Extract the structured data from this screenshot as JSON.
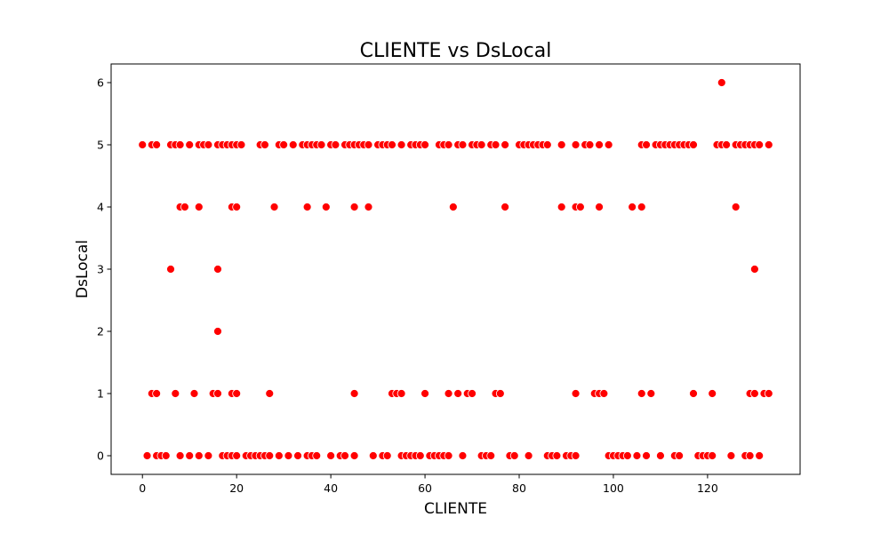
{
  "chart_data": {
    "type": "scatter",
    "title": "CLIENTE vs DsLocal",
    "xlabel": "CLIENTE",
    "ylabel": "DsLocal",
    "xlim": [
      -6.65,
      139.65
    ],
    "ylim": [
      -0.3,
      6.3
    ],
    "xticks": [
      0,
      20,
      40,
      60,
      80,
      100,
      120
    ],
    "yticks": [
      0,
      1,
      2,
      3,
      4,
      5,
      6
    ],
    "grid": false,
    "marker_color": "#ff0000",
    "marker_edge_color": "#ffffff",
    "points": [
      [
        0,
        5
      ],
      [
        2,
        5
      ],
      [
        3,
        5
      ],
      [
        6,
        5
      ],
      [
        7,
        5
      ],
      [
        8,
        5
      ],
      [
        10,
        5
      ],
      [
        12,
        5
      ],
      [
        13,
        5
      ],
      [
        14,
        5
      ],
      [
        16,
        5
      ],
      [
        17,
        5
      ],
      [
        18,
        5
      ],
      [
        19,
        5
      ],
      [
        20,
        5
      ],
      [
        21,
        5
      ],
      [
        25,
        5
      ],
      [
        26,
        5
      ],
      [
        29,
        5
      ],
      [
        30,
        5
      ],
      [
        32,
        5
      ],
      [
        34,
        5
      ],
      [
        35,
        5
      ],
      [
        36,
        5
      ],
      [
        37,
        5
      ],
      [
        38,
        5
      ],
      [
        40,
        5
      ],
      [
        41,
        5
      ],
      [
        43,
        5
      ],
      [
        44,
        5
      ],
      [
        45,
        5
      ],
      [
        46,
        5
      ],
      [
        47,
        5
      ],
      [
        48,
        5
      ],
      [
        50,
        5
      ],
      [
        51,
        5
      ],
      [
        52,
        5
      ],
      [
        53,
        5
      ],
      [
        55,
        5
      ],
      [
        57,
        5
      ],
      [
        58,
        5
      ],
      [
        59,
        5
      ],
      [
        60,
        5
      ],
      [
        63,
        5
      ],
      [
        64,
        5
      ],
      [
        65,
        5
      ],
      [
        67,
        5
      ],
      [
        68,
        5
      ],
      [
        70,
        5
      ],
      [
        71,
        5
      ],
      [
        72,
        5
      ],
      [
        74,
        5
      ],
      [
        75,
        5
      ],
      [
        77,
        5
      ],
      [
        80,
        5
      ],
      [
        81,
        5
      ],
      [
        82,
        5
      ],
      [
        83,
        5
      ],
      [
        84,
        5
      ],
      [
        85,
        5
      ],
      [
        86,
        5
      ],
      [
        89,
        5
      ],
      [
        92,
        5
      ],
      [
        94,
        5
      ],
      [
        95,
        5
      ],
      [
        97,
        5
      ],
      [
        99,
        5
      ],
      [
        106,
        5
      ],
      [
        107,
        5
      ],
      [
        109,
        5
      ],
      [
        110,
        5
      ],
      [
        111,
        5
      ],
      [
        112,
        5
      ],
      [
        113,
        5
      ],
      [
        114,
        5
      ],
      [
        115,
        5
      ],
      [
        116,
        5
      ],
      [
        117,
        5
      ],
      [
        122,
        5
      ],
      [
        123,
        5
      ],
      [
        124,
        5
      ],
      [
        126,
        5
      ],
      [
        127,
        5
      ],
      [
        128,
        5
      ],
      [
        129,
        5
      ],
      [
        130,
        5
      ],
      [
        131,
        5
      ],
      [
        133,
        5
      ],
      [
        123,
        6
      ],
      [
        8,
        4
      ],
      [
        9,
        4
      ],
      [
        12,
        4
      ],
      [
        19,
        4
      ],
      [
        20,
        4
      ],
      [
        28,
        4
      ],
      [
        35,
        4
      ],
      [
        39,
        4
      ],
      [
        45,
        4
      ],
      [
        48,
        4
      ],
      [
        66,
        4
      ],
      [
        77,
        4
      ],
      [
        89,
        4
      ],
      [
        92,
        4
      ],
      [
        93,
        4
      ],
      [
        97,
        4
      ],
      [
        104,
        4
      ],
      [
        106,
        4
      ],
      [
        126,
        4
      ],
      [
        6,
        3
      ],
      [
        16,
        3
      ],
      [
        130,
        3
      ],
      [
        16,
        2
      ],
      [
        2,
        1
      ],
      [
        3,
        1
      ],
      [
        7,
        1
      ],
      [
        11,
        1
      ],
      [
        15,
        1
      ],
      [
        16,
        1
      ],
      [
        19,
        1
      ],
      [
        20,
        1
      ],
      [
        27,
        1
      ],
      [
        45,
        1
      ],
      [
        53,
        1
      ],
      [
        54,
        1
      ],
      [
        55,
        1
      ],
      [
        60,
        1
      ],
      [
        65,
        1
      ],
      [
        67,
        1
      ],
      [
        69,
        1
      ],
      [
        70,
        1
      ],
      [
        75,
        1
      ],
      [
        76,
        1
      ],
      [
        92,
        1
      ],
      [
        96,
        1
      ],
      [
        97,
        1
      ],
      [
        98,
        1
      ],
      [
        106,
        1
      ],
      [
        108,
        1
      ],
      [
        117,
        1
      ],
      [
        121,
        1
      ],
      [
        129,
        1
      ],
      [
        130,
        1
      ],
      [
        132,
        1
      ],
      [
        133,
        1
      ],
      [
        1,
        0
      ],
      [
        3,
        0
      ],
      [
        4,
        0
      ],
      [
        5,
        0
      ],
      [
        8,
        0
      ],
      [
        10,
        0
      ],
      [
        12,
        0
      ],
      [
        14,
        0
      ],
      [
        17,
        0
      ],
      [
        18,
        0
      ],
      [
        19,
        0
      ],
      [
        20,
        0
      ],
      [
        22,
        0
      ],
      [
        23,
        0
      ],
      [
        24,
        0
      ],
      [
        25,
        0
      ],
      [
        26,
        0
      ],
      [
        27,
        0
      ],
      [
        29,
        0
      ],
      [
        31,
        0
      ],
      [
        33,
        0
      ],
      [
        35,
        0
      ],
      [
        36,
        0
      ],
      [
        37,
        0
      ],
      [
        40,
        0
      ],
      [
        42,
        0
      ],
      [
        43,
        0
      ],
      [
        45,
        0
      ],
      [
        49,
        0
      ],
      [
        51,
        0
      ],
      [
        52,
        0
      ],
      [
        55,
        0
      ],
      [
        56,
        0
      ],
      [
        57,
        0
      ],
      [
        58,
        0
      ],
      [
        59,
        0
      ],
      [
        61,
        0
      ],
      [
        62,
        0
      ],
      [
        63,
        0
      ],
      [
        64,
        0
      ],
      [
        65,
        0
      ],
      [
        68,
        0
      ],
      [
        72,
        0
      ],
      [
        73,
        0
      ],
      [
        74,
        0
      ],
      [
        78,
        0
      ],
      [
        79,
        0
      ],
      [
        82,
        0
      ],
      [
        86,
        0
      ],
      [
        87,
        0
      ],
      [
        88,
        0
      ],
      [
        90,
        0
      ],
      [
        91,
        0
      ],
      [
        92,
        0
      ],
      [
        99,
        0
      ],
      [
        100,
        0
      ],
      [
        101,
        0
      ],
      [
        102,
        0
      ],
      [
        103,
        0
      ],
      [
        105,
        0
      ],
      [
        107,
        0
      ],
      [
        110,
        0
      ],
      [
        113,
        0
      ],
      [
        114,
        0
      ],
      [
        118,
        0
      ],
      [
        119,
        0
      ],
      [
        120,
        0
      ],
      [
        121,
        0
      ],
      [
        125,
        0
      ],
      [
        128,
        0
      ],
      [
        129,
        0
      ],
      [
        131,
        0
      ]
    ]
  }
}
